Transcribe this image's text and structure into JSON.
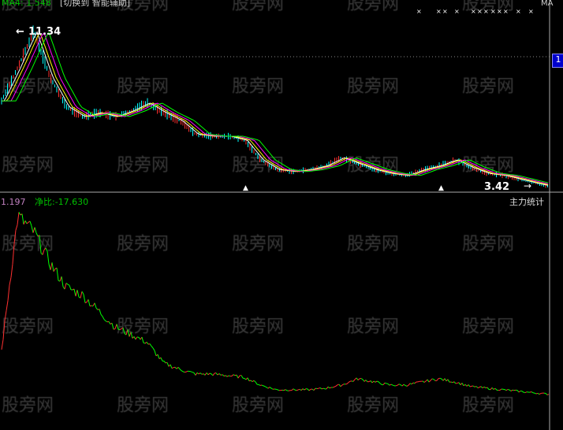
{
  "header": {
    "ma_label": "MA4: 1.548",
    "switch_link": "[切换到 智能辅助]",
    "right_label": "MA",
    "axis_tag": "1"
  },
  "watermark": "股旁网",
  "price_panel": {
    "high_label": "11.34",
    "low_label": "3.42"
  },
  "indicator_panel": {
    "value_label": "1.197",
    "net_ratio_label": "净比:-17.630",
    "title": "主力统计"
  },
  "colors": {
    "ma1": "#ffffff",
    "ma2": "#ffff00",
    "ma3": "#ff00ff",
    "ma4": "#00ff00",
    "candle_up": "#ff3030",
    "candle_down": "#00ffff",
    "indicator_line": "#ffffff",
    "indicator_up": "#ff3030",
    "indicator_down": "#00ff00",
    "axis_tag_bg": "#0000cc"
  },
  "chart_data": [
    {
      "type": "line",
      "title": "",
      "series": [
        {
          "values": [
            7.8,
            9.5,
            11.34,
            9.0,
            7.5,
            7.0,
            7.2,
            7.0,
            7.3,
            7.7,
            7.2,
            6.8,
            6.1,
            6.0,
            6.0,
            5.8,
            4.8,
            4.3,
            4.2,
            4.3,
            4.5,
            4.9,
            4.6,
            4.3,
            4.1,
            4.0,
            4.3,
            4.5,
            4.8,
            4.4,
            4.1,
            4.0,
            3.8,
            3.6,
            3.42
          ]
        }
      ],
      "ylim": [
        3.0,
        12.5
      ]
    },
    {
      "type": "line",
      "title": "主力统计",
      "series": [
        {
          "values": [
            0.3,
            1.15,
            1.05,
            0.85,
            0.7,
            0.65,
            0.55,
            0.45,
            0.4,
            0.35,
            0.22,
            0.18,
            0.15,
            0.15,
            0.14,
            0.13,
            0.08,
            0.05,
            0.05,
            0.05,
            0.06,
            0.08,
            0.12,
            0.1,
            0.08,
            0.08,
            0.1,
            0.12,
            0.1,
            0.07,
            0.06,
            0.05,
            0.04,
            0.03,
            0.02
          ]
        }
      ],
      "ylim": [
        0,
        1.197
      ]
    }
  ]
}
